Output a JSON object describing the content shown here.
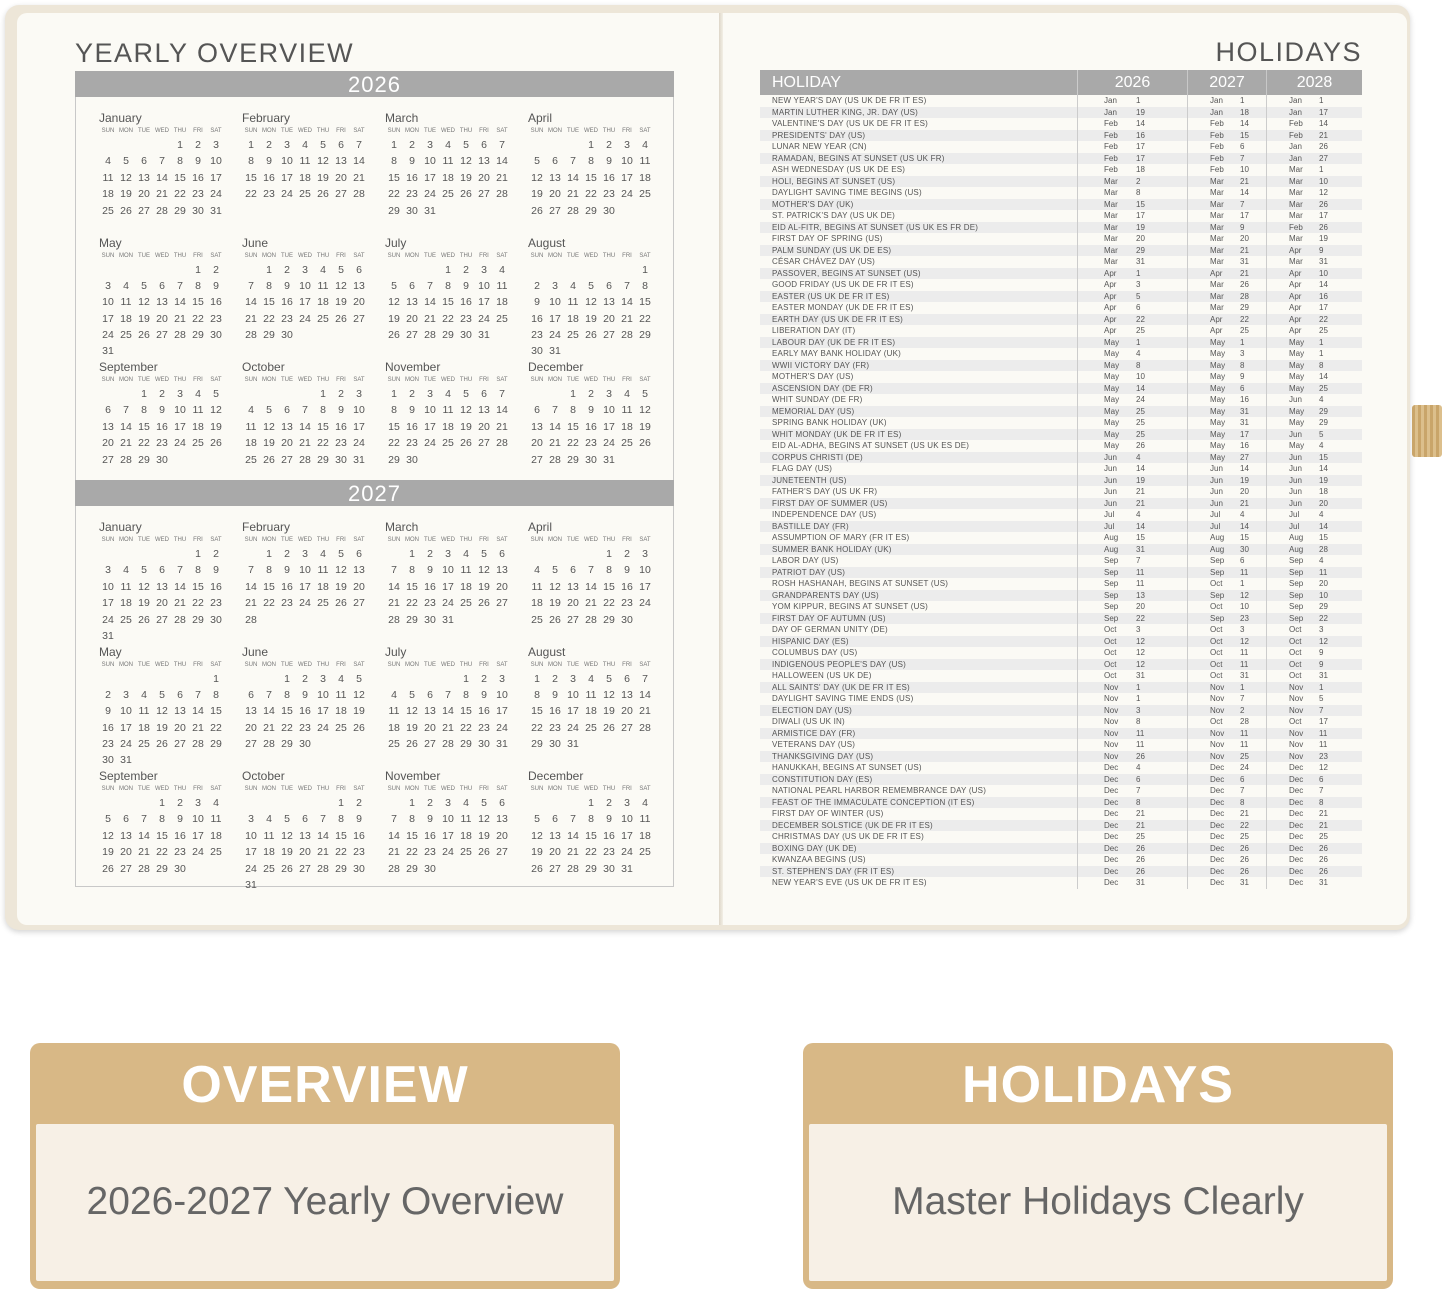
{
  "overview": {
    "title": "YEARLY OVERVIEW",
    "weekdays": [
      "SUN",
      "MON",
      "TUE",
      "WED",
      "THU",
      "FRI",
      "SAT"
    ],
    "months": [
      "January",
      "February",
      "March",
      "April",
      "May",
      "June",
      "July",
      "August",
      "September",
      "October",
      "November",
      "December"
    ],
    "years": [
      2026,
      2027
    ]
  },
  "holidays": {
    "title": "HOLIDAYS",
    "headers": [
      "HOLIDAY",
      "2026",
      "2027",
      "2028"
    ],
    "rows": [
      [
        "NEW YEAR'S DAY (US UK DE FR IT ES)",
        "Jan 1",
        "Jan 1",
        "Jan 1"
      ],
      [
        "MARTIN LUTHER KING, JR. DAY (US)",
        "Jan 19",
        "Jan 18",
        "Jan 17"
      ],
      [
        "VALENTINE'S DAY (US UK DE FR IT ES)",
        "Feb 14",
        "Feb 14",
        "Feb 14"
      ],
      [
        "PRESIDENTS' DAY (US)",
        "Feb 16",
        "Feb 15",
        "Feb 21"
      ],
      [
        "LUNAR NEW YEAR (CN)",
        "Feb 17",
        "Feb 6",
        "Jan 26"
      ],
      [
        "RAMADAN, BEGINS AT SUNSET (US UK FR)",
        "Feb 17",
        "Feb 7",
        "Jan 27"
      ],
      [
        "ASH WEDNESDAY (US UK DE ES)",
        "Feb 18",
        "Feb 10",
        "Mar 1"
      ],
      [
        "HOLI, BEGINS AT SUNSET (US)",
        "Mar 2",
        "Mar 21",
        "Mar 10"
      ],
      [
        "DAYLIGHT SAVING TIME BEGINS (US)",
        "Mar 8",
        "Mar 14",
        "Mar 12"
      ],
      [
        "MOTHER'S DAY (UK)",
        "Mar 15",
        "Mar 7",
        "Mar 26"
      ],
      [
        "ST. PATRICK'S DAY (US UK DE)",
        "Mar 17",
        "Mar 17",
        "Mar 17"
      ],
      [
        "EID AL-FITR, BEGINS AT SUNSET (US UK ES FR DE)",
        "Mar 19",
        "Mar 9",
        "Feb 26"
      ],
      [
        "FIRST DAY OF SPRING (US)",
        "Mar 20",
        "Mar 20",
        "Mar 19"
      ],
      [
        "PALM SUNDAY (US UK DE ES)",
        "Mar 29",
        "Mar 21",
        "Apr 9"
      ],
      [
        "CÉSAR CHÁVEZ DAY (US)",
        "Mar 31",
        "Mar 31",
        "Mar 31"
      ],
      [
        "PASSOVER, BEGINS AT SUNSET (US)",
        "Apr 1",
        "Apr 21",
        "Apr 10"
      ],
      [
        "GOOD FRIDAY (US UK DE FR IT ES)",
        "Apr 3",
        "Mar 26",
        "Apr 14"
      ],
      [
        "EASTER (US UK DE FR IT ES)",
        "Apr 5",
        "Mar 28",
        "Apr 16"
      ],
      [
        "EASTER MONDAY (UK DE FR IT ES)",
        "Apr 6",
        "Mar 29",
        "Apr 17"
      ],
      [
        "EARTH DAY (US UK DE FR IT ES)",
        "Apr 22",
        "Apr 22",
        "Apr 22"
      ],
      [
        "LIBERATION DAY (IT)",
        "Apr 25",
        "Apr 25",
        "Apr 25"
      ],
      [
        "LABOUR DAY (UK DE FR IT ES)",
        "May 1",
        "May 1",
        "May 1"
      ],
      [
        "EARLY MAY BANK HOLIDAY (UK)",
        "May 4",
        "May 3",
        "May 1"
      ],
      [
        "WWII VICTORY DAY (FR)",
        "May 8",
        "May 8",
        "May 8"
      ],
      [
        "MOTHER'S DAY (US)",
        "May 10",
        "May 9",
        "May 14"
      ],
      [
        "ASCENSION DAY (DE FR)",
        "May 14",
        "May 6",
        "May 25"
      ],
      [
        "WHIT SUNDAY (DE FR)",
        "May 24",
        "May 16",
        "Jun 4"
      ],
      [
        "MEMORIAL DAY (US)",
        "May 25",
        "May 31",
        "May 29"
      ],
      [
        "SPRING BANK HOLIDAY (UK)",
        "May 25",
        "May 31",
        "May 29"
      ],
      [
        "WHIT MONDAY (UK DE FR IT ES)",
        "May 25",
        "May 17",
        "Jun 5"
      ],
      [
        "EID AL-ADHA, BEGINS AT SUNSET (US UK ES DE)",
        "May 26",
        "May 16",
        "May 4"
      ],
      [
        "CORPUS CHRISTI (DE)",
        "Jun 4",
        "May 27",
        "Jun 15"
      ],
      [
        "FLAG DAY (US)",
        "Jun 14",
        "Jun 14",
        "Jun 14"
      ],
      [
        "JUNETEENTH (US)",
        "Jun 19",
        "Jun 19",
        "Jun 19"
      ],
      [
        "FATHER'S DAY (US UK FR)",
        "Jun 21",
        "Jun 20",
        "Jun 18"
      ],
      [
        "FIRST DAY OF SUMMER (US)",
        "Jun 21",
        "Jun 21",
        "Jun 20"
      ],
      [
        "INDEPENDENCE DAY (US)",
        "Jul 4",
        "Jul 4",
        "Jul 4"
      ],
      [
        "BASTILLE DAY (FR)",
        "Jul 14",
        "Jul 14",
        "Jul 14"
      ],
      [
        "ASSUMPTION OF MARY (FR IT ES)",
        "Aug 15",
        "Aug 15",
        "Aug 15"
      ],
      [
        "SUMMER BANK HOLIDAY (UK)",
        "Aug 31",
        "Aug 30",
        "Aug 28"
      ],
      [
        "LABOR DAY (US)",
        "Sep 7",
        "Sep 6",
        "Sep 4"
      ],
      [
        "PATRIOT DAY (US)",
        "Sep 11",
        "Sep 11",
        "Sep 11"
      ],
      [
        "ROSH HASHANAH, BEGINS AT SUNSET (US)",
        "Sep 11",
        "Oct 1",
        "Sep 20"
      ],
      [
        "GRANDPARENTS DAY (US)",
        "Sep 13",
        "Sep 12",
        "Sep 10"
      ],
      [
        "YOM KIPPUR, BEGINS AT SUNSET (US)",
        "Sep 20",
        "Oct 10",
        "Sep 29"
      ],
      [
        "FIRST DAY OF AUTUMN (US)",
        "Sep 22",
        "Sep 23",
        "Sep 22"
      ],
      [
        "DAY OF GERMAN UNITY (DE)",
        "Oct 3",
        "Oct 3",
        "Oct 3"
      ],
      [
        "HISPANIC DAY (ES)",
        "Oct 12",
        "Oct 12",
        "Oct 12"
      ],
      [
        "COLUMBUS DAY (US)",
        "Oct 12",
        "Oct 11",
        "Oct 9"
      ],
      [
        "INDIGENOUS PEOPLE'S DAY (US)",
        "Oct 12",
        "Oct 11",
        "Oct 9"
      ],
      [
        "HALLOWEEN (US UK DE)",
        "Oct 31",
        "Oct 31",
        "Oct 31"
      ],
      [
        "ALL SAINTS' DAY (UK DE FR IT ES)",
        "Nov 1",
        "Nov 1",
        "Nov 1"
      ],
      [
        "DAYLIGHT SAVING TIME ENDS (US)",
        "Nov 1",
        "Nov 7",
        "Nov 5"
      ],
      [
        "ELECTION DAY (US)",
        "Nov 3",
        "Nov 2",
        "Nov 7"
      ],
      [
        "DIWALI (US UK IN)",
        "Nov 8",
        "Oct 28",
        "Oct 17"
      ],
      [
        "ARMISTICE DAY (FR)",
        "Nov 11",
        "Nov 11",
        "Nov 11"
      ],
      [
        "VETERANS DAY (US)",
        "Nov 11",
        "Nov 11",
        "Nov 11"
      ],
      [
        "THANKSGIVING DAY (US)",
        "Nov 26",
        "Nov 25",
        "Nov 23"
      ],
      [
        "HANUKKAH, BEGINS AT SUNSET (US)",
        "Dec 4",
        "Dec 24",
        "Dec 12"
      ],
      [
        "CONSTITUTION DAY (ES)",
        "Dec 6",
        "Dec 6",
        "Dec 6"
      ],
      [
        "NATIONAL PEARL HARBOR REMEMBRANCE DAY (US)",
        "Dec 7",
        "Dec 7",
        "Dec 7"
      ],
      [
        "FEAST OF THE IMMACULATE CONCEPTION (IT ES)",
        "Dec 8",
        "Dec 8",
        "Dec 8"
      ],
      [
        "FIRST DAY OF WINTER (US)",
        "Dec 21",
        "Dec 21",
        "Dec 21"
      ],
      [
        "DECEMBER SOLSTICE (UK DE FR IT ES)",
        "Dec 21",
        "Dec 22",
        "Dec 21"
      ],
      [
        "CHRISTMAS DAY (US UK DE FR IT ES)",
        "Dec 25",
        "Dec 25",
        "Dec 25"
      ],
      [
        "BOXING DAY (UK DE)",
        "Dec 26",
        "Dec 26",
        "Dec 26"
      ],
      [
        "KWANZAA BEGINS (US)",
        "Dec 26",
        "Dec 26",
        "Dec 26"
      ],
      [
        "ST. STEPHEN'S DAY (FR IT ES)",
        "Dec 26",
        "Dec 26",
        "Dec 26"
      ],
      [
        "NEW YEAR'S EVE (US UK DE FR IT ES)",
        "Dec 31",
        "Dec 31",
        "Dec 31"
      ]
    ]
  },
  "banners": [
    {
      "title": "OVERVIEW",
      "subtitle": "2026-2027 Yearly Overview"
    },
    {
      "title": "HOLIDAYS",
      "subtitle": "Master Holidays Clearly"
    }
  ],
  "colors": {
    "gold": "#d8b886",
    "cream": "#f7f0e6",
    "bar_gray": "#a9a9a9",
    "stripe": "#ececec"
  }
}
